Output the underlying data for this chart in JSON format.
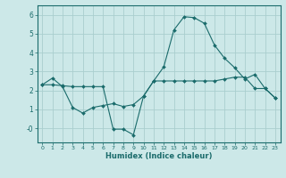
{
  "title": "",
  "xlabel": "Humidex (Indice chaleur)",
  "bg_color": "#cce8e8",
  "grid_color": "#aacece",
  "line_color": "#1a6b6b",
  "xlim": [
    -0.5,
    23.5
  ],
  "ylim": [
    -0.75,
    6.5
  ],
  "xtick_labels": [
    "0",
    "1",
    "2",
    "3",
    "4",
    "5",
    "6",
    "7",
    "8",
    "9",
    "10",
    "11",
    "12",
    "13",
    "14",
    "15",
    "16",
    "17",
    "18",
    "19",
    "20",
    "21",
    "22",
    "23"
  ],
  "ytick_values": [
    0,
    1,
    2,
    3,
    4,
    5,
    6
  ],
  "ytick_labels": [
    "-0",
    "1",
    "2",
    "3",
    "4",
    "5",
    "6"
  ],
  "line1_x": [
    0,
    1,
    2,
    3,
    4,
    5,
    6,
    7,
    8,
    9,
    10,
    11,
    12,
    13,
    14,
    15,
    16,
    17,
    18,
    19,
    20,
    21,
    22,
    23
  ],
  "line1_y": [
    2.3,
    2.65,
    2.2,
    1.1,
    0.8,
    1.1,
    1.2,
    1.3,
    1.15,
    1.25,
    1.7,
    2.5,
    3.25,
    5.2,
    5.9,
    5.85,
    5.55,
    4.4,
    3.7,
    3.2,
    2.6,
    2.85,
    2.1,
    1.6
  ],
  "line2_x": [
    0,
    1,
    2,
    3,
    4,
    5,
    6,
    7,
    8,
    9,
    10,
    11,
    12,
    13,
    14,
    15,
    16,
    17,
    18,
    19,
    20,
    21,
    22,
    23
  ],
  "line2_y": [
    2.3,
    2.3,
    2.25,
    2.2,
    2.2,
    2.2,
    2.2,
    -0.05,
    -0.05,
    -0.35,
    1.7,
    2.5,
    2.5,
    2.5,
    2.5,
    2.5,
    2.5,
    2.5,
    2.6,
    2.7,
    2.7,
    2.1,
    2.1,
    1.6
  ]
}
